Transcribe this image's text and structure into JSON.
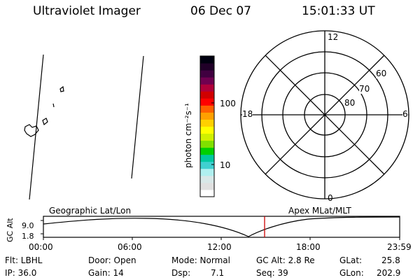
{
  "header": {
    "title": "Ultraviolet Imager",
    "date": "06 Dec 07",
    "time": "15:01:33 UT"
  },
  "colorbar": {
    "unit_label": "photon cm⁻²s⁻¹",
    "tick_100": "100",
    "tick_10": "10",
    "colors": [
      "#ffffff",
      "#e0e0e0",
      "#d8e8e8",
      "#b0f0f0",
      "#40d0d0",
      "#00c8a0",
      "#00d000",
      "#80e000",
      "#d0f000",
      "#ffff00",
      "#ffd000",
      "#ffa000",
      "#ff6000",
      "#ff0000",
      "#d00000",
      "#b0003a",
      "#700050",
      "#400040",
      "#200028",
      "#000010"
    ]
  },
  "polar_plot": {
    "mlt_top": "12",
    "mlt_bottom": "0",
    "mlt_left": "18",
    "mlt_right": "6",
    "lat_60": "60",
    "lat_70": "70",
    "lat_80": "80"
  },
  "timeline": {
    "label_left": "Geographic Lat/Lon",
    "label_right": "Apex MLat/MLT",
    "yaxis_label": "GC Alt",
    "ytick_top": "9.0",
    "ytick_bottom": "1.8",
    "xticks": [
      "00:00",
      "06:00",
      "12:00",
      "18:00",
      "23:59"
    ],
    "current_time_marker_color": "#cc0000"
  },
  "status": {
    "flt": "Flt: LBHL",
    "ip": "IP: 36.0",
    "door": "Door: Open",
    "gain": "Gain: 14",
    "mode": "Mode: Normal",
    "dsp": "Dsp:",
    "dsp_value": "7.1",
    "gc_alt": "GC Alt: 2.8 Re",
    "seq": "Seq: 39",
    "glat": "GLat:",
    "glat_value": "25.8",
    "glon": "GLon:",
    "glon_value": "202.9"
  }
}
